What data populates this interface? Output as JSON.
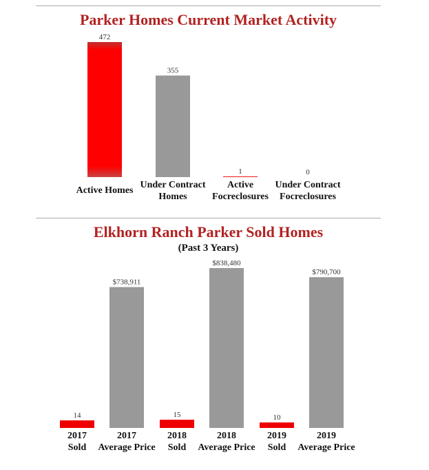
{
  "chart_data": [
    {
      "type": "bar",
      "title": "Parker Homes Current Market Activity",
      "categories": [
        [
          "Active Homes"
        ],
        [
          "Under Contract",
          "Homes"
        ],
        [
          "Active",
          "Focreclosures"
        ],
        [
          "Under Contract",
          "Focreclosures"
        ]
      ],
      "values": [
        472,
        355,
        1,
        0
      ],
      "value_labels": [
        "472",
        "355",
        "1",
        "0"
      ],
      "colors": [
        "#ff0000",
        "#999999",
        "#ee1111",
        "#999999"
      ],
      "ylim": [
        0,
        472
      ]
    },
    {
      "type": "bar",
      "title": "Elkhorn Ranch Parker Sold Homes",
      "subtitle": "(Past 3 Years)",
      "categories": [
        [
          "2017",
          "Sold"
        ],
        [
          "2017",
          "Average Price"
        ],
        [
          "2018",
          "Sold"
        ],
        [
          "2018",
          "Average Price"
        ],
        [
          "2019",
          "Sold"
        ],
        [
          "2019",
          "Average Price"
        ]
      ],
      "values": [
        14,
        738911,
        15,
        838480,
        10,
        790700
      ],
      "value_labels": [
        "14",
        "$738,911",
        "15",
        "$838,480",
        "10",
        "$790,700"
      ],
      "colors": [
        "#ee0000",
        "#999999",
        "#ee0000",
        "#999999",
        "#ee0000",
        "#999999"
      ],
      "ylim": [
        0,
        838480
      ]
    }
  ]
}
